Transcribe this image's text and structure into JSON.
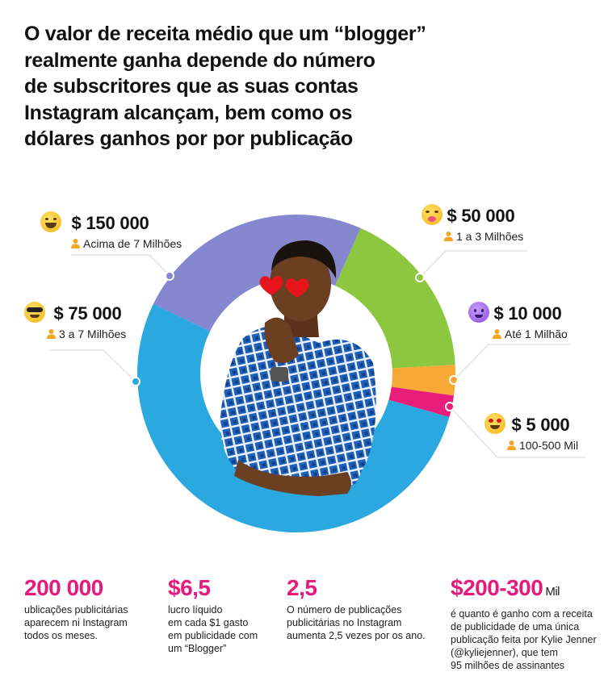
{
  "title_lines": [
    "O valor de receita médio que um “blogger”",
    "realmente ganha depende do número",
    "de subscritores que as suas contas",
    "Instagram alcançam, bem como os",
    "dólares ganhos por por publicação"
  ],
  "chart_data": {
    "type": "pie",
    "variant": "donut",
    "slices": [
      {
        "name": "Acima de 7 Milhões",
        "amount": "$ 150 000",
        "emoji": "tears-of-joy-emoji",
        "share_percent": 24.4,
        "color": "#8587CF"
      },
      {
        "name": "1 a 3 Milhões",
        "amount": "$ 50 000",
        "emoji": "squinting-tongue-emoji",
        "share_percent": 17.5,
        "color": "#8DC63F"
      },
      {
        "name": "Até 1 Milhão",
        "amount": "$ 10 000",
        "emoji": "smiling-devil-emoji",
        "share_percent": 3.1,
        "color": "#F7A937"
      },
      {
        "name": "100-500 Mil",
        "amount": "$ 5 000",
        "emoji": "heart-eyes-emoji",
        "share_percent": 2.2,
        "color": "#E91E7A"
      },
      {
        "name": "3 a 7 Milhões",
        "amount": "$ 75 000",
        "emoji": "sunglasses-emoji",
        "share_percent": 52.8,
        "color": "#2BA8E0"
      }
    ],
    "start_angle_deg": -64
  },
  "stats": [
    {
      "number": "200 000",
      "unit": "",
      "text": "ublicações publicitárias\naparecem ni Instagram\ntodos os meses."
    },
    {
      "number": "$6,5",
      "unit": "",
      "text": "lucro líquido\nem cada $1 gasto\nem publicidade com\num “Blogger”"
    },
    {
      "number": "2,5",
      "unit": "",
      "text": "O número de publicações\npublicitárias no Instagram\naumenta 2,5 vezes por os ano."
    },
    {
      "number": "$200-300",
      "unit": "Mil",
      "text": "é quanto é ganho com a receita\nde publicidade de uma única\npublicação feita por Kylie Jenner\n(@kyliejenner), que tem\n95 milhões de assinantes"
    }
  ],
  "colors": {
    "accent": "#E6197D",
    "person_icon": "#F5A623",
    "leader_line": "#E3E3E3"
  }
}
